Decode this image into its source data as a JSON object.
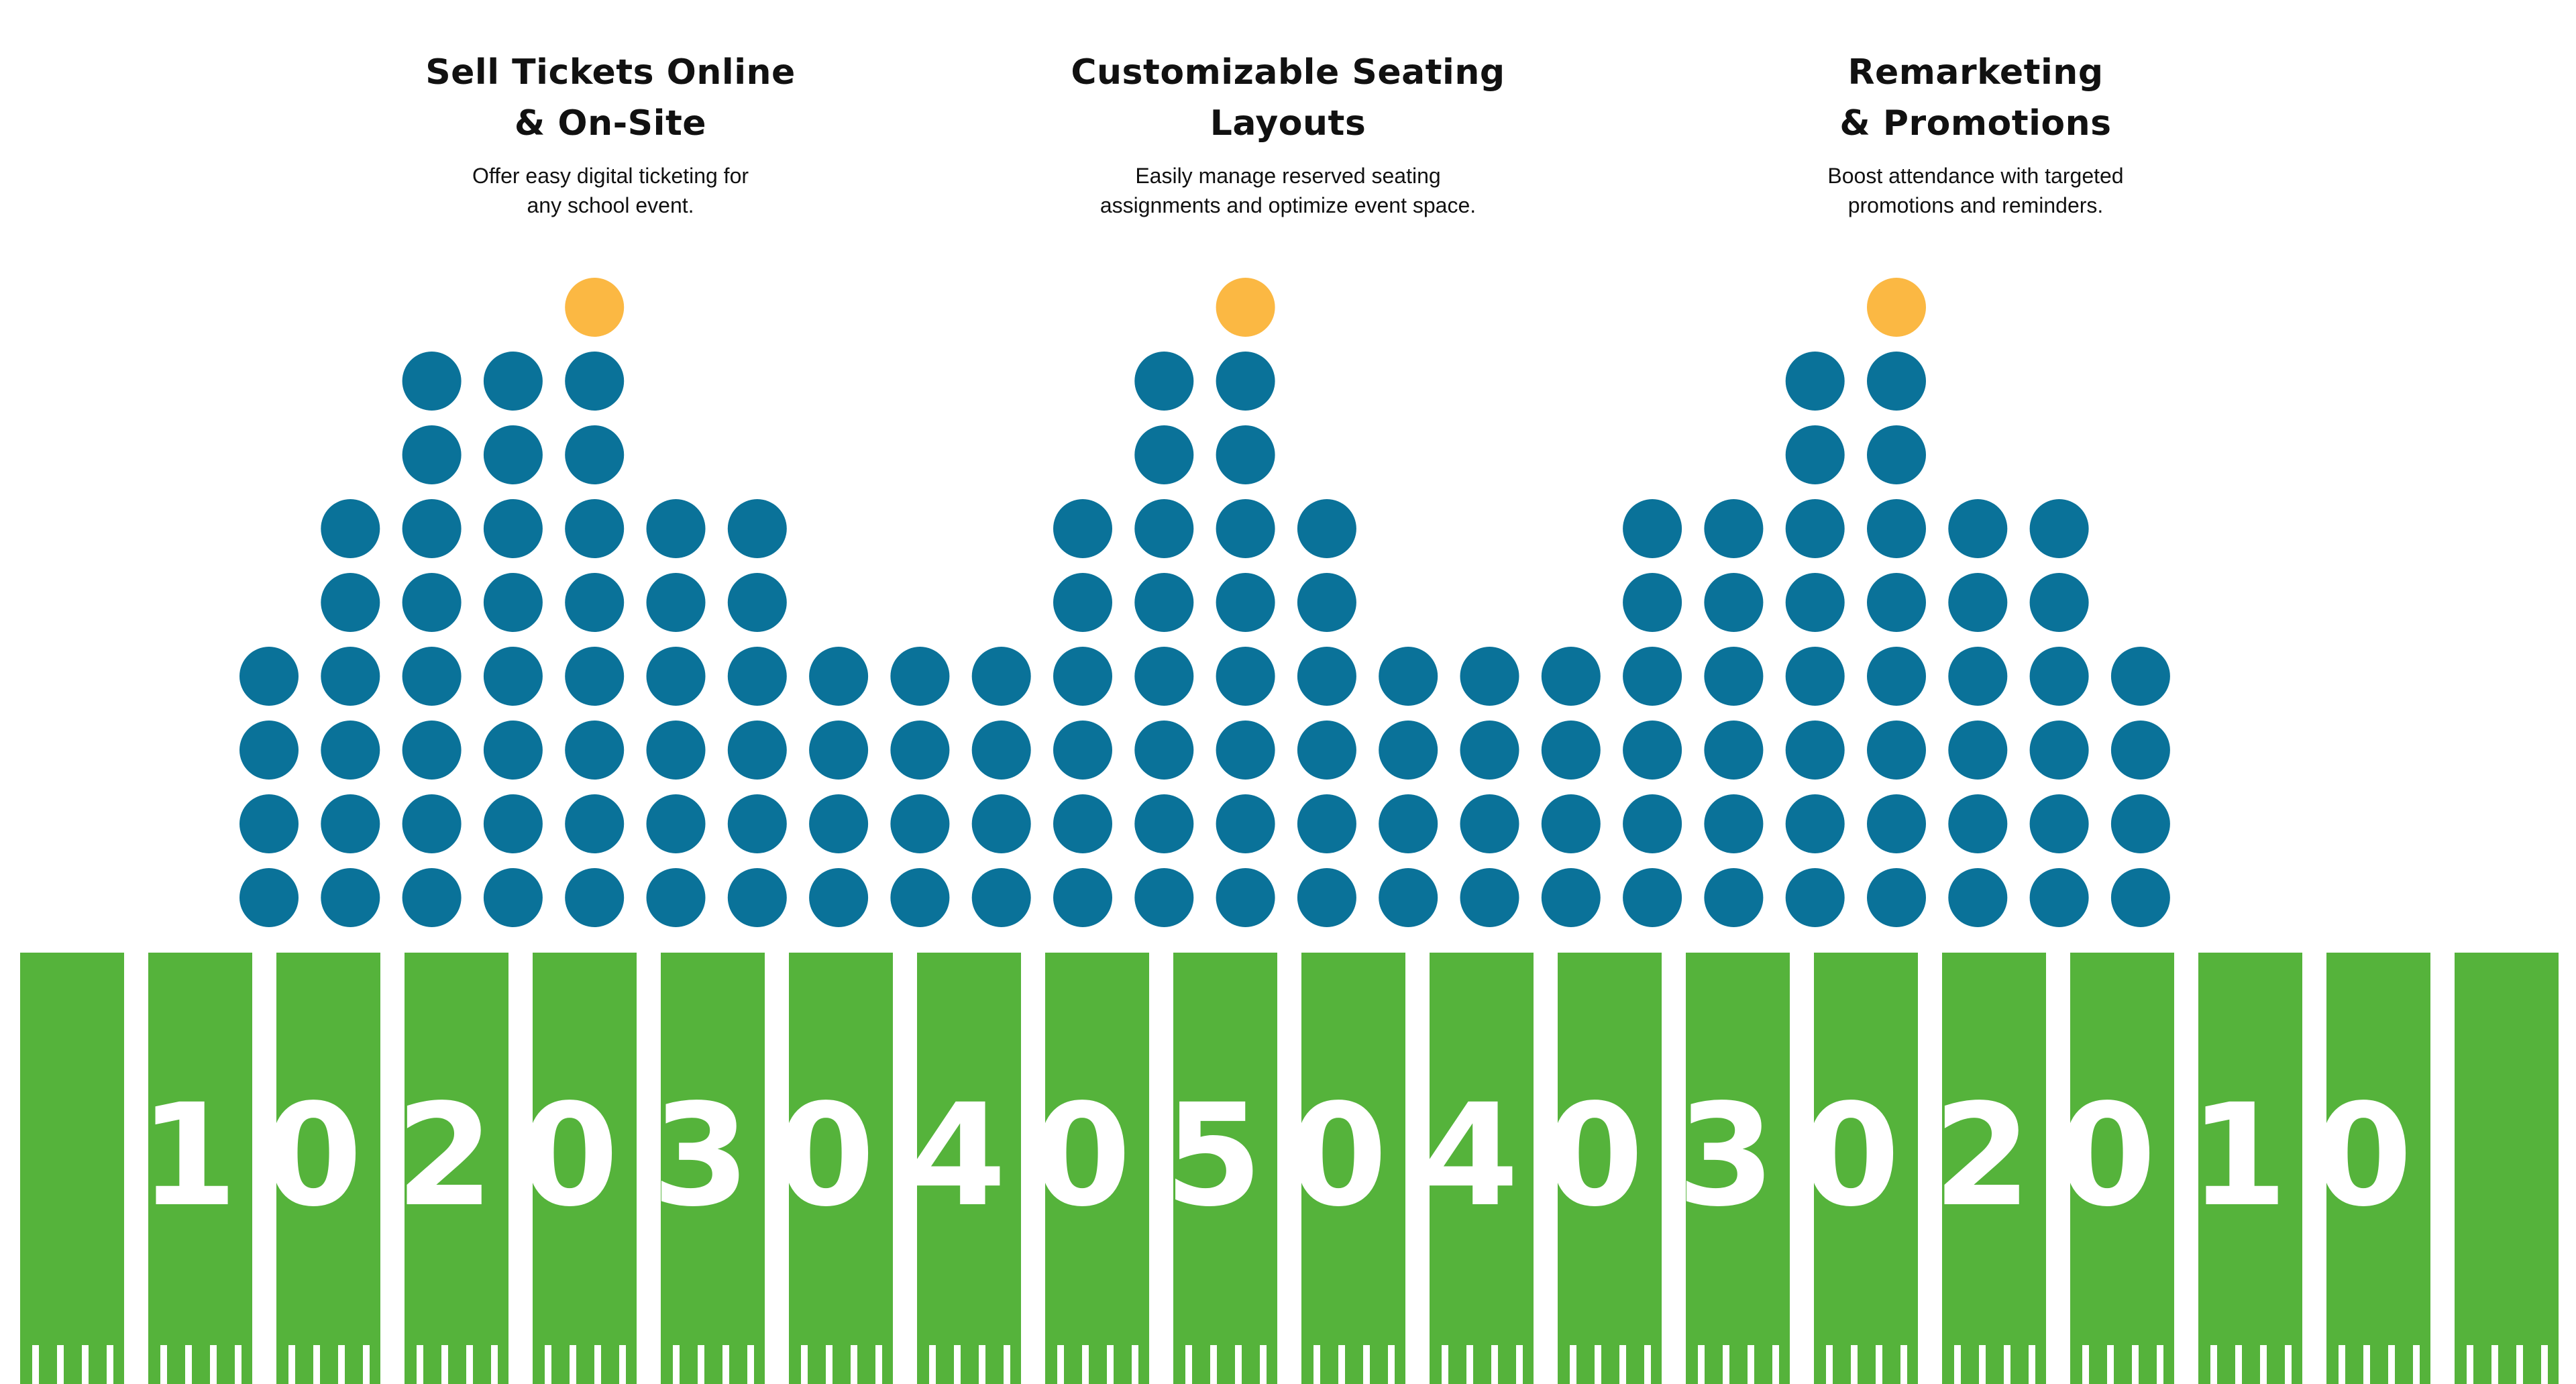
{
  "features": [
    {
      "title": "Sell Tickets Online\n& On-Site",
      "description": "Offer easy digital ticketing for\nany school event."
    },
    {
      "title": "Customizable Seating\nLayouts",
      "description": "Easily manage reserved seating\nassignments and optimize event space."
    },
    {
      "title": "Remarketing\n& Promotions",
      "description": "Boost attendance with targeted\npromotions and reminders."
    }
  ],
  "colors": {
    "seat": "#0a7299",
    "highlight_seat": "#fbb843",
    "field": "#55b33b",
    "field_lines": "#ffffff",
    "text": "#111111"
  },
  "seat_columns": [
    4,
    6,
    8,
    8,
    8,
    6,
    6,
    4,
    4,
    4,
    6,
    8,
    8,
    6,
    4,
    4,
    4,
    6,
    6,
    8,
    8,
    6,
    6,
    4
  ],
  "highlighted_columns": [
    4,
    12,
    20
  ],
  "yard_numbers": [
    "10",
    "20",
    "30",
    "40",
    "50",
    "40",
    "30",
    "20",
    "10"
  ]
}
